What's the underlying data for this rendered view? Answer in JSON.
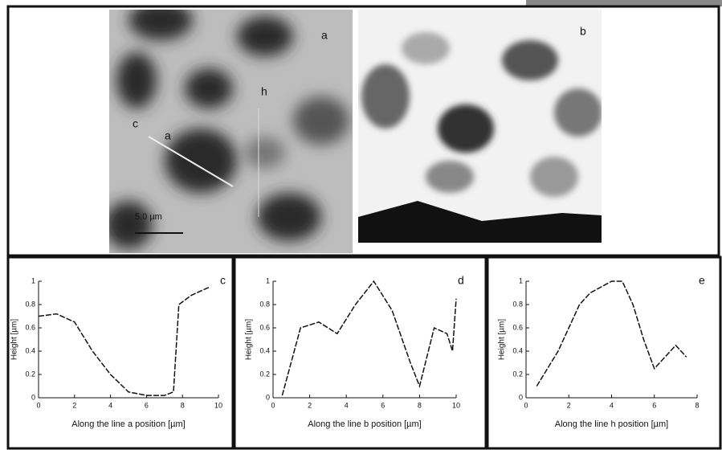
{
  "images": [
    {
      "label": "a",
      "annotations": [
        "c",
        "a",
        "h"
      ],
      "scale_bar": "5.0 µm"
    },
    {
      "label": "b"
    }
  ],
  "chart_data": [
    {
      "type": "line",
      "label": "c",
      "x_label": "Along the line a position [µm]",
      "y_label": "Height [µm]",
      "x": [
        0,
        1,
        2,
        3,
        4,
        5,
        6,
        7,
        7.5,
        7.8,
        8.5,
        9.5
      ],
      "values": [
        0.7,
        0.72,
        0.65,
        0.4,
        0.2,
        0.05,
        0.02,
        0.02,
        0.05,
        0.8,
        0.88,
        0.95
      ],
      "xlim": [
        0,
        10
      ],
      "xticks": [
        0,
        2,
        4,
        6,
        8,
        10
      ],
      "ylim": [
        0,
        1
      ],
      "yticks": [
        0,
        0.2,
        0.4,
        0.6,
        0.8,
        1
      ]
    },
    {
      "type": "line",
      "label": "d",
      "x_label": "Along the line b position [µm]",
      "y_label": "Height [µm]",
      "x": [
        0.5,
        1.5,
        2.5,
        3.5,
        4.5,
        5.5,
        6.5,
        7.5,
        8,
        8.8,
        9.5,
        9.8,
        10
      ],
      "values": [
        0.02,
        0.6,
        0.65,
        0.55,
        0.8,
        1,
        0.75,
        0.3,
        0.1,
        0.6,
        0.55,
        0.4,
        0.85
      ],
      "xlim": [
        0,
        10
      ],
      "xticks": [
        0,
        2,
        4,
        6,
        8,
        10
      ],
      "ylim": [
        0,
        1
      ],
      "yticks": [
        0,
        0.2,
        0.4,
        0.6,
        0.8,
        1
      ]
    },
    {
      "type": "line",
      "label": "e",
      "x_label": "Along the line h position [µm]",
      "y_label": "Height [µm]",
      "x": [
        0.5,
        1.5,
        2.5,
        3,
        4,
        4.5,
        5,
        5.5,
        6,
        6.5,
        7,
        7.5
      ],
      "values": [
        0.1,
        0.4,
        0.8,
        0.9,
        1,
        1,
        0.8,
        0.5,
        0.25,
        0.35,
        0.45,
        0.35
      ],
      "xlim": [
        0,
        8
      ],
      "xticks": [
        0,
        2,
        4,
        6,
        8
      ],
      "ylim": [
        0,
        1
      ],
      "yticks": [
        0,
        0.2,
        0.4,
        0.6,
        0.8,
        1
      ]
    }
  ]
}
